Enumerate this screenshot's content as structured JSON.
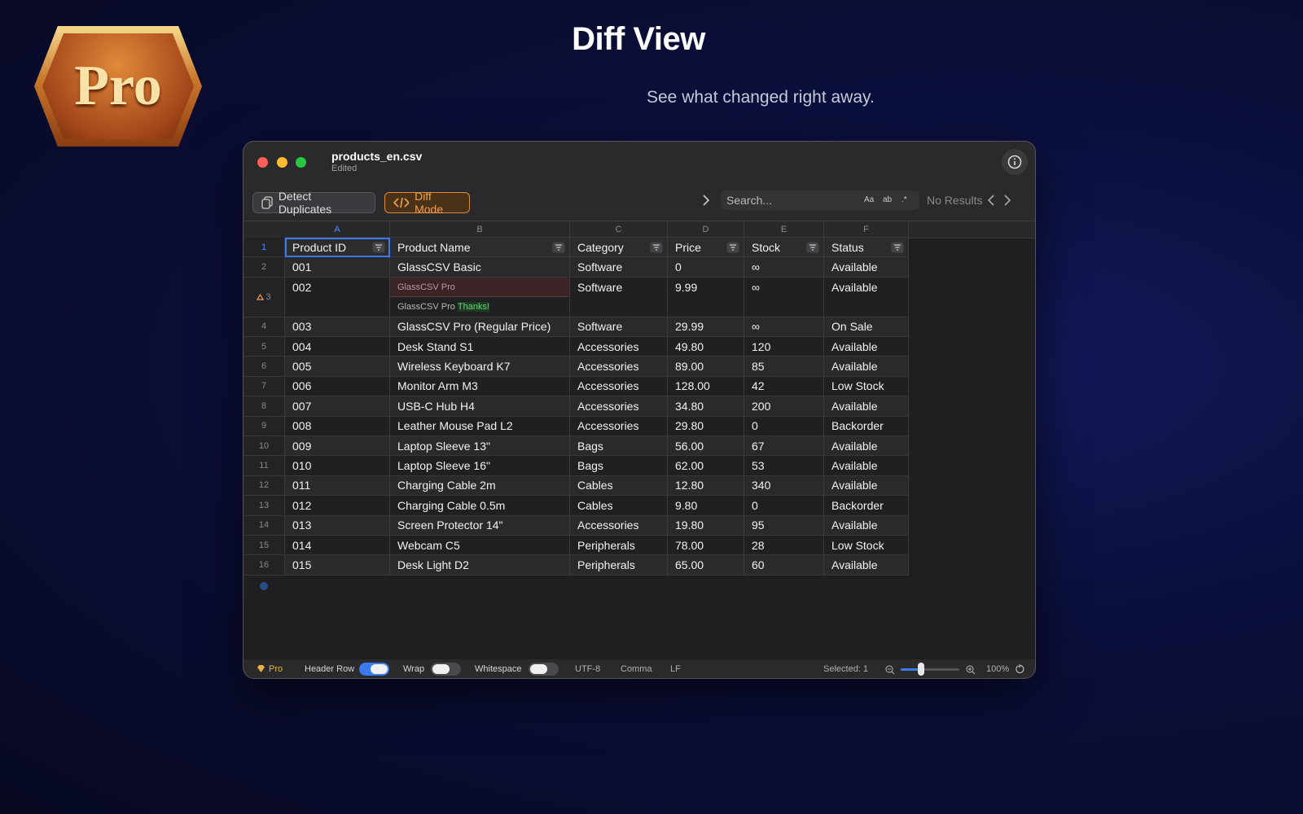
{
  "badge": "Pro",
  "header": {
    "title": "Diff View",
    "subtitle": "See what changed right away."
  },
  "window": {
    "filename": "products_en.csv",
    "status": "Edited"
  },
  "toolbar": {
    "detect": "Detect Duplicates",
    "diff": "Diff Mode",
    "search_placeholder": "Search...",
    "options": [
      "Aa",
      "ab",
      ".*"
    ],
    "results": "No Results"
  },
  "table": {
    "columns": [
      "A",
      "B",
      "C",
      "D",
      "E",
      "F"
    ],
    "rows": [
      {
        "number": 1,
        "cells": [
          "Product ID",
          "Product Name",
          "Category",
          "Price",
          "Stock",
          "Status"
        ]
      },
      {
        "number": 2,
        "cells": [
          "001",
          "GlassCSV Basic",
          "Software",
          "0",
          "∞",
          "Available"
        ]
      },
      {
        "number": 3,
        "cells": [
          "002",
          {
            "old": "GlassCSV Pro",
            "new": "GlassCSV Pro",
            "added": "Thanks!"
          },
          "Software",
          "9.99",
          "∞",
          "Available"
        ]
      },
      {
        "number": 4,
        "cells": [
          "003",
          "GlassCSV Pro (Regular Price)",
          "Software",
          "29.99",
          "∞",
          "On Sale"
        ]
      },
      {
        "number": 5,
        "cells": [
          "004",
          "Desk Stand S1",
          "Accessories",
          "49.80",
          "120",
          "Available"
        ]
      },
      {
        "number": 6,
        "cells": [
          "005",
          "Wireless Keyboard K7",
          "Accessories",
          "89.00",
          "85",
          "Available"
        ]
      },
      {
        "number": 7,
        "cells": [
          "006",
          "Monitor Arm M3",
          "Accessories",
          "128.00",
          "42",
          "Low Stock"
        ]
      },
      {
        "number": 8,
        "cells": [
          "007",
          "USB-C Hub H4",
          "Accessories",
          "34.80",
          "200",
          "Available"
        ]
      },
      {
        "number": 9,
        "cells": [
          "008",
          "Leather Mouse Pad L2",
          "Accessories",
          "29.80",
          "0",
          "Backorder"
        ]
      },
      {
        "number": 10,
        "cells": [
          "009",
          "Laptop Sleeve 13\"",
          "Bags",
          "56.00",
          "67",
          "Available"
        ]
      },
      {
        "number": 11,
        "cells": [
          "010",
          "Laptop Sleeve 16\"",
          "Bags",
          "62.00",
          "53",
          "Available"
        ]
      },
      {
        "number": 12,
        "cells": [
          "011",
          "Charging Cable 2m",
          "Cables",
          "12.80",
          "340",
          "Available"
        ]
      },
      {
        "number": 13,
        "cells": [
          "012",
          "Charging Cable 0.5m",
          "Cables",
          "9.80",
          "0",
          "Backorder"
        ]
      },
      {
        "number": 14,
        "cells": [
          "013",
          "Screen Protector 14\"",
          "Accessories",
          "19.80",
          "95",
          "Available"
        ]
      },
      {
        "number": 15,
        "cells": [
          "014",
          "Webcam C5",
          "Peripherals",
          "78.00",
          "28",
          "Low Stock"
        ]
      },
      {
        "number": 16,
        "cells": [
          "015",
          "Desk Light D2",
          "Peripherals",
          "65.00",
          "60",
          "Available"
        ]
      }
    ]
  },
  "status_bar": {
    "pro": "Pro",
    "toggles": [
      {
        "label": "Header Row",
        "on": true
      },
      {
        "label": "Wrap",
        "on": false
      },
      {
        "label": "Whitespace",
        "on": false
      }
    ],
    "encoding": "UTF-8",
    "delimiter": "Comma",
    "line_ending": "LF",
    "selection": "Selected: 1",
    "zoom": "100%"
  }
}
